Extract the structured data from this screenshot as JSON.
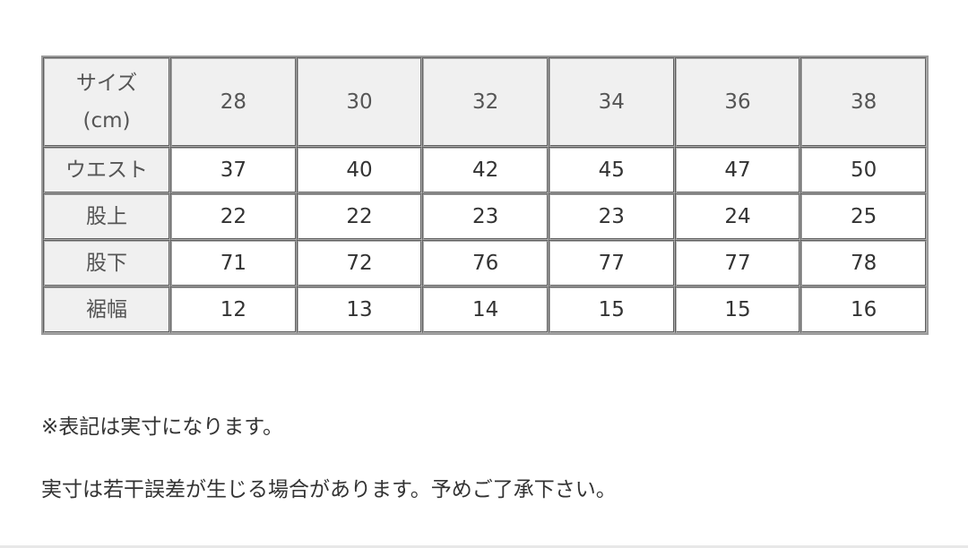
{
  "table": {
    "corner_line1": "サイズ",
    "corner_line2": "(cm)",
    "sizes": [
      "28",
      "30",
      "32",
      "34",
      "36",
      "38"
    ],
    "rows": [
      {
        "label": "ウエスト",
        "values": [
          "37",
          "40",
          "42",
          "45",
          "47",
          "50"
        ]
      },
      {
        "label": "股上",
        "values": [
          "22",
          "22",
          "23",
          "23",
          "24",
          "25"
        ]
      },
      {
        "label": "股下",
        "values": [
          "71",
          "72",
          "76",
          "77",
          "77",
          "78"
        ]
      },
      {
        "label": "裾幅",
        "values": [
          "12",
          "13",
          "14",
          "15",
          "15",
          "16"
        ]
      }
    ]
  },
  "notes": [
    "※表記は実寸になります。",
    "実寸は若干誤差が生じる場合があります。予めご了承下さい。"
  ]
}
